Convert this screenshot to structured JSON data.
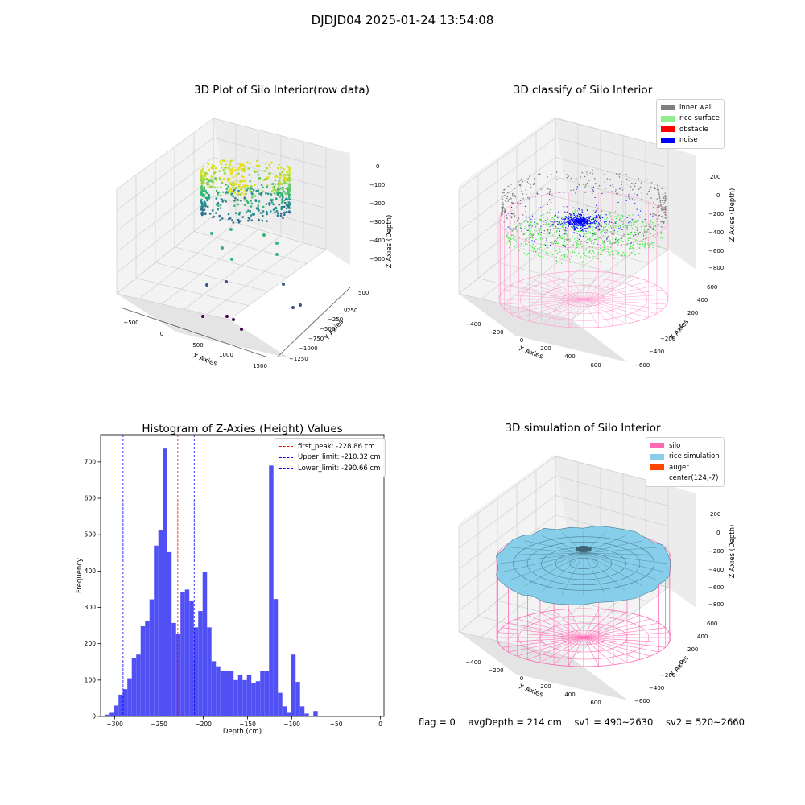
{
  "suptitle": "DJDJD04 2025-01-24 13:54:08",
  "colors": {
    "hist_bar": "#5050f5",
    "first_peak_line": "#ff0000",
    "limit_line": "#0000ff",
    "inner_wall": "#808080",
    "rice_surface": "#90ee90",
    "obstacle": "#ff0000",
    "noise": "#0000ff",
    "silo": "#ff69b4",
    "rice_simulation": "#87ceeb",
    "auger": "#ff4500"
  },
  "panels": {
    "raw": {
      "title": "3D Plot of Silo Interior(row data)",
      "x_label": "X Axies",
      "y_label": "Y Axies",
      "z_label": "Z Axies (Depth)",
      "x_ticks": [
        "−500",
        "0",
        "500",
        "1000",
        "1500"
      ],
      "y_ticks": [
        "500",
        "250",
        "0",
        "−250",
        "−500",
        "−750",
        "−1000",
        "−1250"
      ],
      "z_ticks": [
        "0",
        "−100",
        "−200",
        "−300",
        "−400",
        "−500"
      ]
    },
    "classify": {
      "title": "3D classify of Silo Interior",
      "x_label": "X Axies",
      "y_label": "Y Axies",
      "z_label": "Z Axies (Depth)",
      "x_ticks": [
        "−400",
        "−200",
        "0",
        "200",
        "400",
        "600"
      ],
      "y_ticks": [
        "600",
        "400",
        "200",
        "0",
        "−200",
        "−400",
        "−600"
      ],
      "z_ticks": [
        "200",
        "0",
        "−200",
        "−400",
        "−600",
        "−800"
      ],
      "legend": [
        "inner wall",
        "rice surface",
        "obstacle",
        "noise"
      ]
    },
    "simulation": {
      "title": "3D simulation of Silo Interior",
      "x_label": "X Axies",
      "y_label": "Y Axies",
      "z_label": "Z Axies (Depth)",
      "x_ticks": [
        "−400",
        "−200",
        "0",
        "200",
        "400",
        "600"
      ],
      "y_ticks": [
        "600",
        "400",
        "200",
        "0",
        "−200",
        "−400",
        "−600"
      ],
      "z_ticks": [
        "200",
        "0",
        "−200",
        "−400",
        "−600",
        "−800"
      ],
      "legend": [
        "silo",
        "rice simulation",
        "auger",
        "center(124,-7)"
      ]
    }
  },
  "status": {
    "flag": "flag = 0",
    "avg_depth": "avgDepth = 214 cm",
    "sv1": "sv1 = 490~2630",
    "sv2": "sv2 = 520~2660"
  },
  "chart_data": [
    {
      "type": "bar",
      "title": "Histogram of Z-Axies (Height) Values",
      "xlabel": "Depth (cm)",
      "ylabel": "Frequency",
      "xlim": [
        -316,
        4
      ],
      "ylim": [
        0,
        775
      ],
      "x_ticks": [
        -300,
        -250,
        -200,
        -150,
        -100,
        -50,
        0
      ],
      "y_ticks": [
        0,
        100,
        200,
        300,
        400,
        500,
        600,
        700
      ],
      "bin_start": -310.8,
      "bin_width": 5.0,
      "values": [
        5,
        10,
        30,
        60,
        75,
        105,
        160,
        170,
        248,
        262,
        322,
        470,
        513,
        737,
        452,
        257,
        228,
        343,
        349,
        318,
        245,
        290,
        397,
        245,
        152,
        138,
        125,
        125,
        125,
        100,
        114,
        100,
        114,
        93,
        97,
        125,
        125,
        690,
        323,
        65,
        28,
        10,
        170,
        95,
        28,
        8,
        0,
        15
      ],
      "lines": [
        {
          "name": "first_peak",
          "label": "first_peak: -228.86 cm",
          "x": -228.86,
          "color": "#ff0000"
        },
        {
          "name": "upper_limit",
          "label": "Upper_limit: -210.32 cm",
          "x": -210.32,
          "color": "#0000ff"
        },
        {
          "name": "lower_limit",
          "label": "Lower_limit: -290.66 cm",
          "x": -290.66,
          "color": "#0000ff"
        }
      ],
      "legend_position": "upper right",
      "grid": false
    }
  ]
}
